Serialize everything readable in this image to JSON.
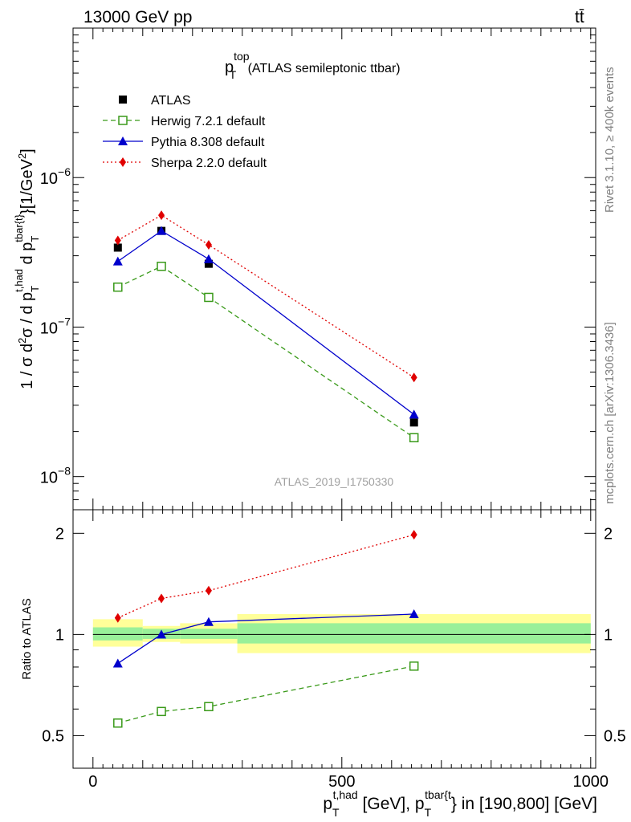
{
  "header": {
    "energy_label": "13000 GeV pp",
    "process_label": "tt̄"
  },
  "side_labels": {
    "rivet": "Rivet 3.1.10, ≥ 400k events",
    "mcplots": "mcplots.cern.ch [arXiv:1306.3436]"
  },
  "colors": {
    "atlas": "#000000",
    "herwig": "#3a9a1a",
    "pythia": "#0000cc",
    "sherpa": "#e00000",
    "band_inner": "#99f099",
    "band_outer": "#ffff99",
    "watermark": "#a0a0a0"
  },
  "chart_data": [
    {
      "type": "line",
      "title": "p_T^top (ATLAS semileptonic ttbar)",
      "title_main": "p",
      "title_sup": "top",
      "title_sub": "T",
      "title_rest": " (ATLAS semileptonic ttbar)",
      "ylabel": "1 / σ d²σ / d p_T^{t,had} d p_T^{tbar{t}} [1/GeV²]",
      "yscale": "log",
      "ylim": [
        6e-09,
        1e-05
      ],
      "xlim": [
        -40,
        1010
      ],
      "y_ticks": [
        {
          "value": 1e-06,
          "base": "10",
          "exp": "−6"
        },
        {
          "value": 1e-07,
          "base": "10",
          "exp": "−7"
        },
        {
          "value": 1e-08,
          "base": "10",
          "exp": "−8"
        }
      ],
      "watermark": "ATLAS_2019_I1750330",
      "legend_position": "top-left",
      "series": [
        {
          "name": "ATLAS",
          "key": "atlas",
          "marker": "square-filled",
          "line": "none",
          "x": [
            50,
            137.5,
            232.5,
            645
          ],
          "y": [
            3.4e-07,
            4.4e-07,
            2.65e-07,
            2.3e-08
          ]
        },
        {
          "name": "Herwig 7.2.1 default",
          "key": "herwig",
          "marker": "square-open",
          "line": "dashed",
          "x": [
            50,
            137.5,
            232.5,
            645
          ],
          "y": [
            1.85e-07,
            2.55e-07,
            1.58e-07,
            1.82e-08
          ]
        },
        {
          "name": "Pythia 8.308 default",
          "key": "pythia",
          "marker": "triangle",
          "line": "solid",
          "x": [
            50,
            137.5,
            232.5,
            645
          ],
          "y": [
            2.75e-07,
            4.4e-07,
            2.85e-07,
            2.6e-08
          ]
        },
        {
          "name": "Sherpa 2.2.0 default",
          "key": "sherpa",
          "marker": "diamond",
          "line": "dotted",
          "x": [
            50,
            137.5,
            232.5,
            645
          ],
          "y": [
            3.8e-07,
            5.6e-07,
            3.55e-07,
            4.6e-08
          ]
        }
      ]
    },
    {
      "type": "line",
      "ylabel": "Ratio to ATLAS",
      "yscale": "log",
      "ylim": [
        0.4,
        2.35
      ],
      "xlim": [
        -40,
        1010
      ],
      "y_ticks": [
        {
          "value": 2,
          "label": "2"
        },
        {
          "value": 1,
          "label": "1"
        },
        {
          "value": 0.5,
          "label": "0.5"
        }
      ],
      "x_ticks": [
        {
          "value": 0,
          "label": "0"
        },
        {
          "value": 500,
          "label": "500"
        },
        {
          "value": 1000,
          "label": "1000"
        }
      ],
      "xlabel_parts": {
        "p1": "p",
        "p1_sub": "T",
        "p1_sup": "t,had",
        "mid": " [GeV], ",
        "p2": "p",
        "p2_sub": "T",
        "p2_sup": "tbar{t",
        "end": "} in [190,800] [GeV]"
      },
      "uncertainty_bands": [
        {
          "xmin": 0,
          "xmax": 100,
          "inner": [
            0.96,
            1.05
          ],
          "outer": [
            0.92,
            1.11
          ]
        },
        {
          "xmin": 100,
          "xmax": 175,
          "inner": [
            0.97,
            1.04
          ],
          "outer": [
            0.95,
            1.06
          ]
        },
        {
          "xmin": 175,
          "xmax": 290,
          "inner": [
            0.97,
            1.04
          ],
          "outer": [
            0.94,
            1.08
          ]
        },
        {
          "xmin": 290,
          "xmax": 1000,
          "inner": [
            0.94,
            1.08
          ],
          "outer": [
            0.88,
            1.15
          ]
        }
      ],
      "series": [
        {
          "name": "Herwig 7.2.1 default",
          "key": "herwig",
          "marker": "square-open",
          "line": "dashed",
          "x": [
            50,
            137.5,
            232.5,
            645
          ],
          "y": [
            0.545,
            0.59,
            0.61,
            0.805
          ]
        },
        {
          "name": "Pythia 8.308 default",
          "key": "pythia",
          "marker": "triangle",
          "line": "solid",
          "x": [
            50,
            137.5,
            232.5,
            645
          ],
          "y": [
            0.82,
            1.0,
            1.09,
            1.15
          ]
        },
        {
          "name": "Sherpa 2.2.0 default",
          "key": "sherpa",
          "marker": "diamond",
          "line": "dotted",
          "x": [
            50,
            137.5,
            232.5,
            645
          ],
          "y": [
            1.12,
            1.28,
            1.35,
            1.98
          ]
        }
      ]
    }
  ]
}
